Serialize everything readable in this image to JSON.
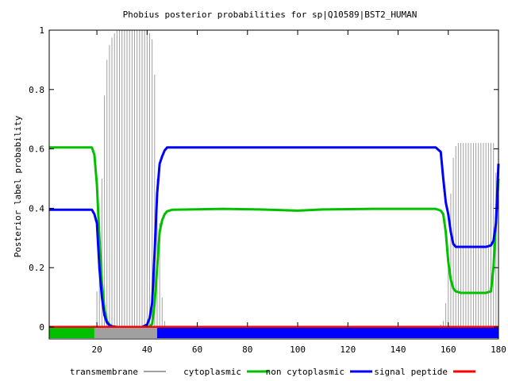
{
  "chart_data": {
    "type": "line",
    "title": "Phobius posterior probabilities for sp|Q10589|BST2_HUMAN",
    "xlabel": "",
    "ylabel": "Posterior label probability",
    "xlim": [
      1,
      180
    ],
    "ylim": [
      0,
      1
    ],
    "x_ticks": [
      "20",
      "40",
      "60",
      "80",
      "100",
      "120",
      "140",
      "160",
      "180"
    ],
    "y_ticks": [
      "0",
      "0.2",
      "0.4",
      "0.6",
      "0.8",
      "1"
    ],
    "grid": false,
    "legend_position": "bottom",
    "colors": {
      "transmembrane": "#a0a0a0",
      "cytoplasmic": "#00c000",
      "non_cytoplasmic": "#0000ff",
      "signal_peptide": "#ff0000"
    },
    "series": [
      {
        "name": "transmembrane",
        "style": "impulses",
        "points": [
          [
            1,
            0
          ],
          [
            18,
            0
          ],
          [
            19,
            0.005
          ],
          [
            20,
            0.12
          ],
          [
            21,
            0.25
          ],
          [
            22,
            0.5
          ],
          [
            23,
            0.78
          ],
          [
            24,
            0.9
          ],
          [
            25,
            0.95
          ],
          [
            26,
            0.975
          ],
          [
            27,
            0.99
          ],
          [
            28,
            0.998
          ],
          [
            29,
            1
          ],
          [
            40,
            1
          ],
          [
            41,
            0.99
          ],
          [
            42,
            0.97
          ],
          [
            43,
            0.85
          ],
          [
            44,
            0.5
          ],
          [
            45,
            0.35
          ],
          [
            46,
            0.1
          ],
          [
            47,
            0.02
          ],
          [
            48,
            0
          ],
          [
            155,
            0
          ],
          [
            156,
            0.003
          ],
          [
            157,
            0.008
          ],
          [
            158,
            0.02
          ],
          [
            159,
            0.08
          ],
          [
            160,
            0.22
          ],
          [
            161,
            0.45
          ],
          [
            162,
            0.57
          ],
          [
            163,
            0.61
          ],
          [
            164,
            0.62
          ],
          [
            178,
            0.62
          ],
          [
            179,
            0.52
          ],
          [
            180,
            0.05
          ]
        ]
      },
      {
        "name": "cytoplasmic",
        "style": "line",
        "points": [
          [
            1,
            0.605
          ],
          [
            18,
            0.605
          ],
          [
            19,
            0.58
          ],
          [
            20,
            0.48
          ],
          [
            21,
            0.3
          ],
          [
            22,
            0.15
          ],
          [
            23,
            0.06
          ],
          [
            24,
            0.02
          ],
          [
            25,
            0.008
          ],
          [
            26,
            0.003
          ],
          [
            27,
            0.001
          ],
          [
            28,
            0
          ],
          [
            40,
            0
          ],
          [
            41,
            0.002
          ],
          [
            42,
            0.01
          ],
          [
            43,
            0.08
          ],
          [
            44,
            0.2
          ],
          [
            45,
            0.32
          ],
          [
            46,
            0.36
          ],
          [
            47,
            0.38
          ],
          [
            48,
            0.39
          ],
          [
            50,
            0.395
          ],
          [
            70,
            0.398
          ],
          [
            85,
            0.396
          ],
          [
            100,
            0.392
          ],
          [
            110,
            0.396
          ],
          [
            130,
            0.398
          ],
          [
            155,
            0.398
          ],
          [
            157,
            0.392
          ],
          [
            158,
            0.38
          ],
          [
            159,
            0.32
          ],
          [
            160,
            0.22
          ],
          [
            161,
            0.16
          ],
          [
            162,
            0.13
          ],
          [
            163,
            0.12
          ],
          [
            165,
            0.115
          ],
          [
            175,
            0.115
          ],
          [
            177,
            0.12
          ],
          [
            178,
            0.2
          ],
          [
            179,
            0.35
          ],
          [
            180,
            0.5
          ]
        ]
      },
      {
        "name": "non cytoplasmic",
        "style": "line",
        "points": [
          [
            1,
            0.395
          ],
          [
            18,
            0.395
          ],
          [
            19,
            0.38
          ],
          [
            20,
            0.35
          ],
          [
            21,
            0.2
          ],
          [
            22,
            0.1
          ],
          [
            23,
            0.04
          ],
          [
            24,
            0.015
          ],
          [
            25,
            0.006
          ],
          [
            26,
            0.002
          ],
          [
            27,
            0.001
          ],
          [
            28,
            0
          ],
          [
            38,
            0
          ],
          [
            40,
            0.008
          ],
          [
            41,
            0.03
          ],
          [
            42,
            0.08
          ],
          [
            43,
            0.25
          ],
          [
            44,
            0.45
          ],
          [
            45,
            0.55
          ],
          [
            46,
            0.575
          ],
          [
            47,
            0.595
          ],
          [
            48,
            0.605
          ],
          [
            155,
            0.605
          ],
          [
            157,
            0.59
          ],
          [
            158,
            0.5
          ],
          [
            159,
            0.42
          ],
          [
            160,
            0.38
          ],
          [
            161,
            0.32
          ],
          [
            162,
            0.28
          ],
          [
            163,
            0.27
          ],
          [
            175,
            0.27
          ],
          [
            177,
            0.275
          ],
          [
            178,
            0.29
          ],
          [
            179,
            0.35
          ],
          [
            180,
            0.55
          ]
        ]
      },
      {
        "name": "signal peptide",
        "style": "line",
        "points": [
          [
            1,
            0
          ],
          [
            180,
            0
          ]
        ]
      }
    ],
    "topology_bar": [
      {
        "label": "cytoplasmic",
        "start": 1,
        "end": 19
      },
      {
        "label": "transmembrane",
        "start": 19,
        "end": 44
      },
      {
        "label": "non cytoplasmic",
        "start": 44,
        "end": 180
      }
    ]
  }
}
